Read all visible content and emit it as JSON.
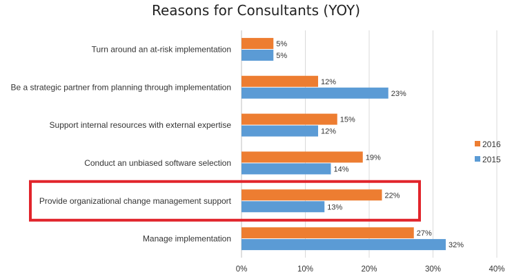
{
  "chart_data": {
    "type": "bar",
    "orientation": "horizontal",
    "title": "Reasons for Consultants (YOY)",
    "categories": [
      "Turn around an at-risk implementation",
      "Be a strategic partner from planning through implementation",
      "Support internal resources with external expertise",
      "Conduct an unbiased software selection",
      "Provide organizational change management support",
      "Manage implementation"
    ],
    "series": [
      {
        "name": "2016",
        "color": "#ED7D31",
        "values": [
          5,
          12,
          15,
          19,
          22,
          27
        ]
      },
      {
        "name": "2015",
        "color": "#5B9BD5",
        "values": [
          5,
          23,
          12,
          14,
          13,
          32
        ]
      }
    ],
    "value_suffix": "%",
    "xlim": [
      0,
      40
    ],
    "xticks": [
      0,
      10,
      20,
      30,
      40
    ],
    "xtick_labels": [
      "0%",
      "10%",
      "20%",
      "30%",
      "40%"
    ],
    "grid": "vertical",
    "legend_position": "right",
    "legend": [
      "2016",
      "2015"
    ],
    "highlight": {
      "category": "Provide organizational change management support",
      "color": "#E1242B"
    }
  }
}
